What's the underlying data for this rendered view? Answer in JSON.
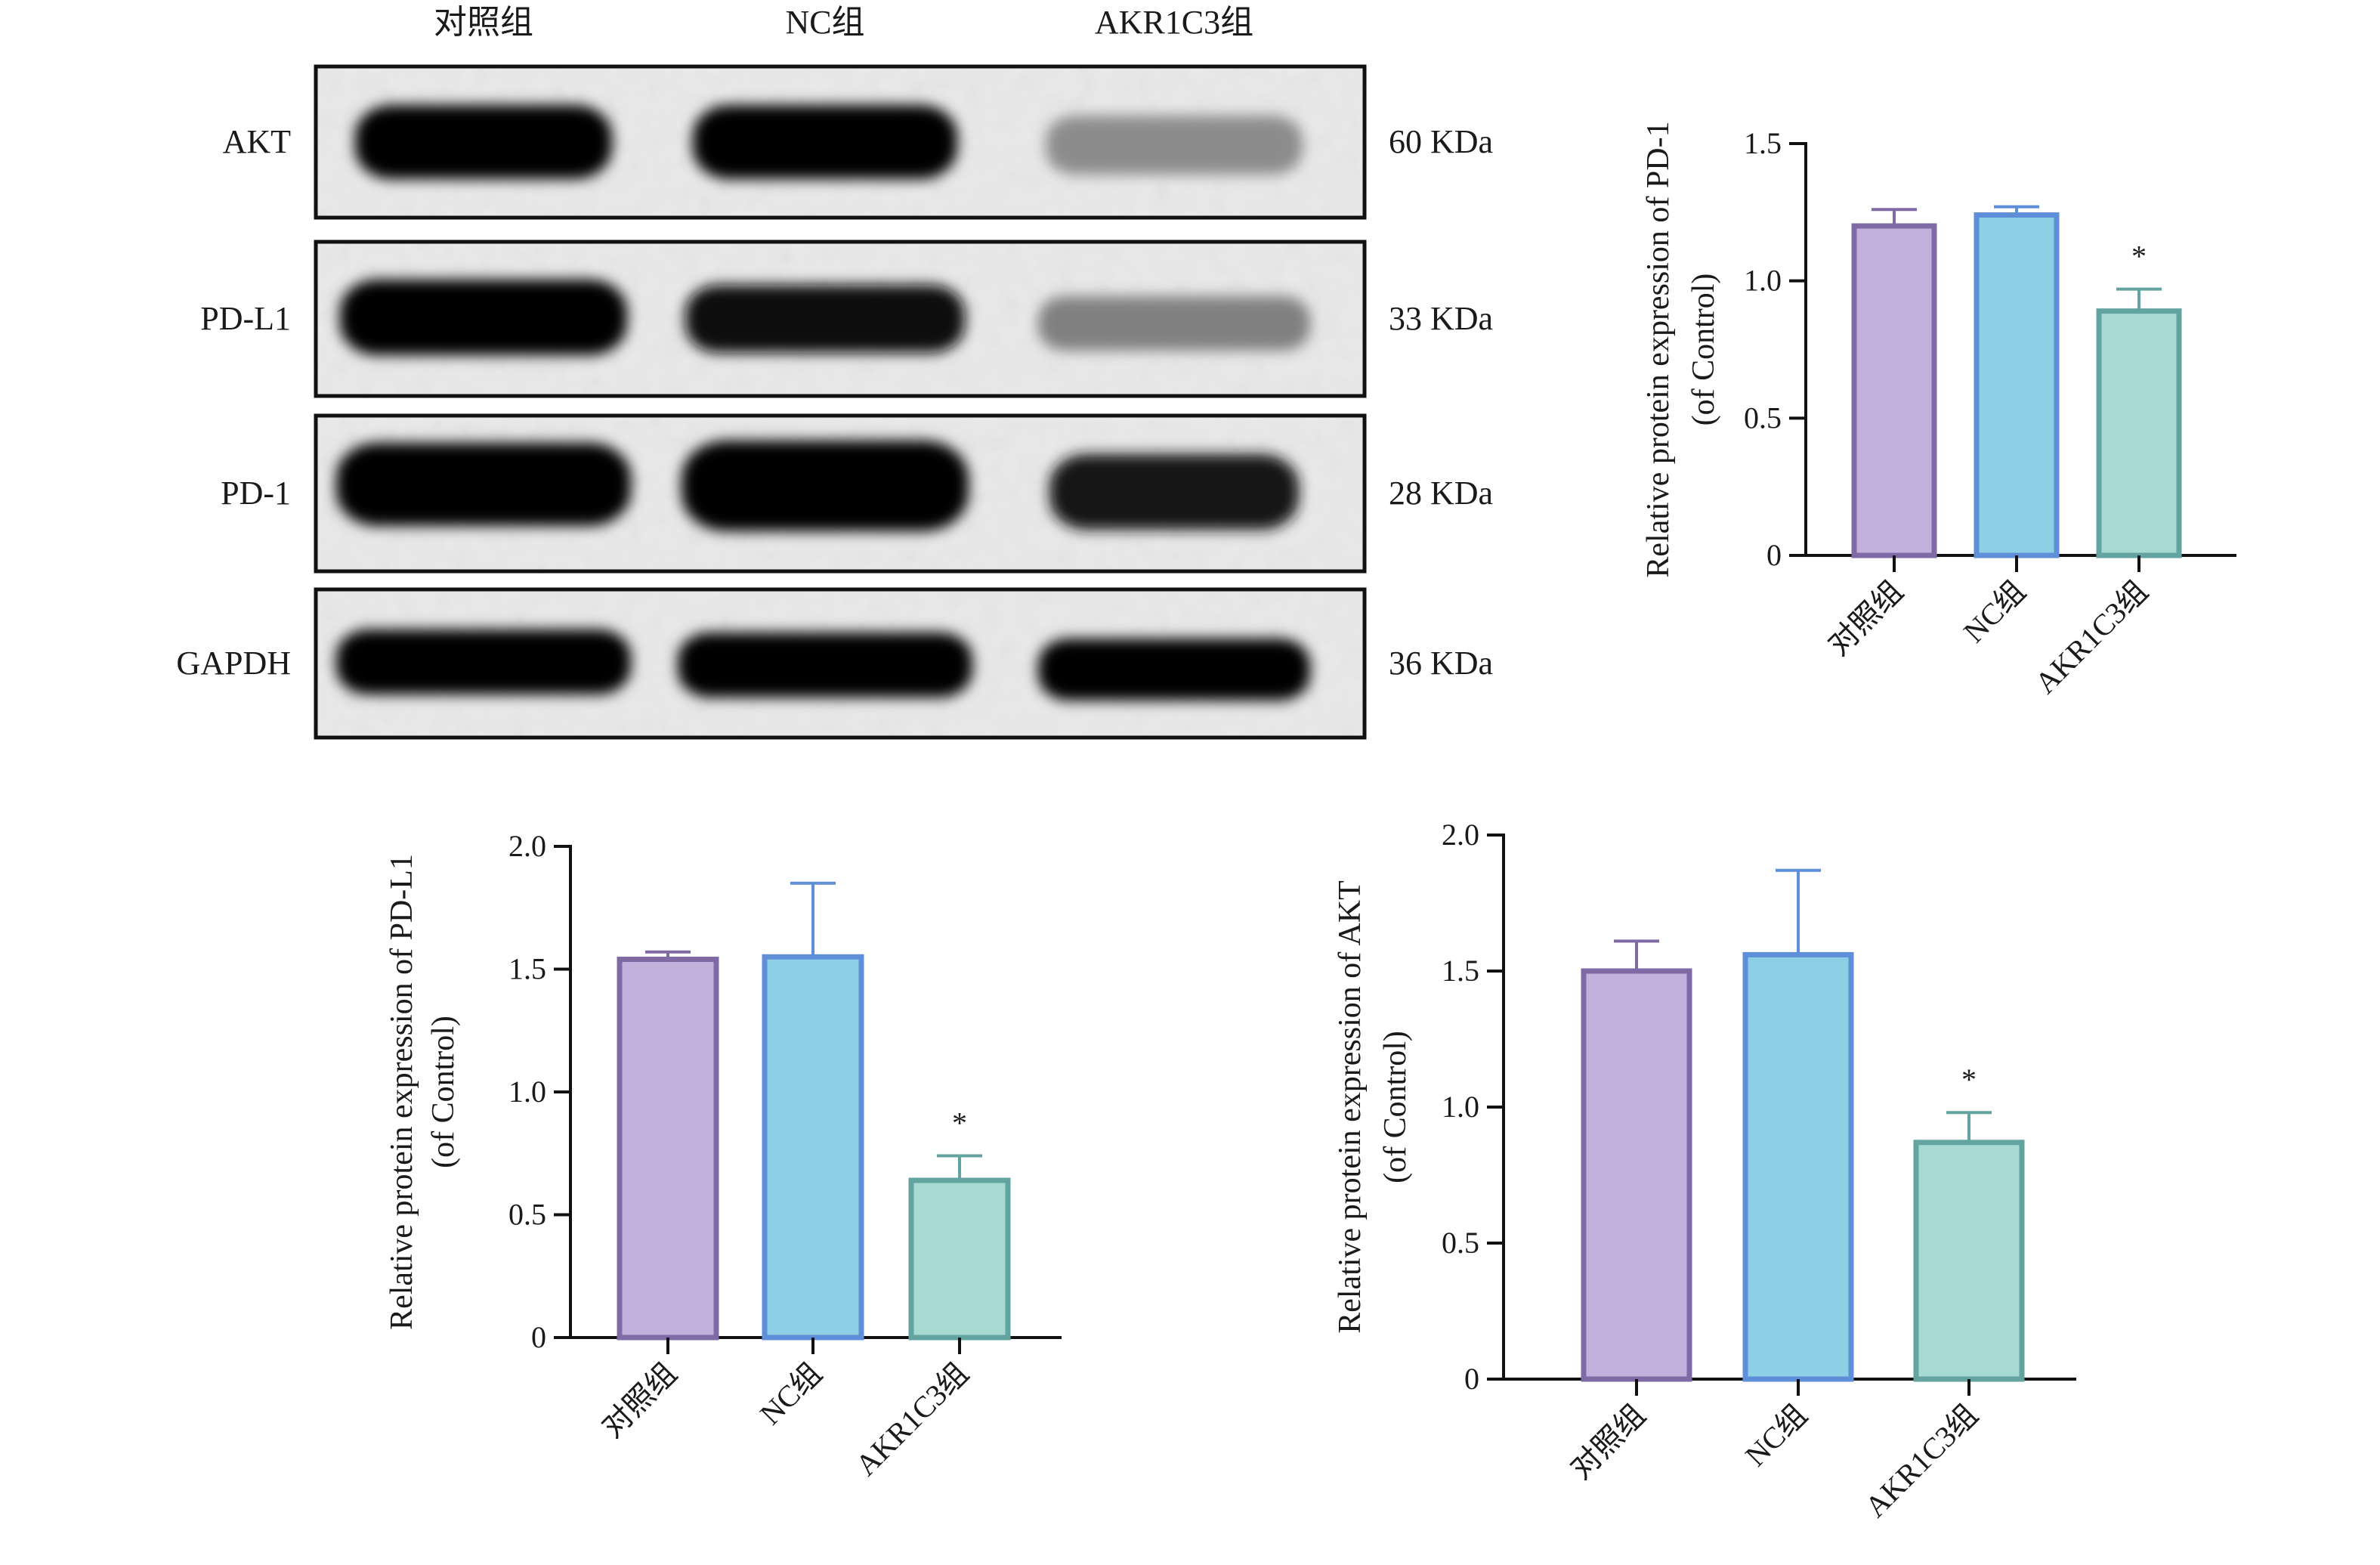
{
  "western_blot": {
    "lanes": [
      "对照组",
      "NC组",
      "AKR1C3组"
    ],
    "rows": [
      {
        "protein": "AKT",
        "weight": "60 KDa",
        "intensity": [
          1.0,
          1.0,
          0.45
        ]
      },
      {
        "protein": "PD-L1",
        "weight": "33 KDa",
        "intensity": [
          1.0,
          0.97,
          0.5
        ]
      },
      {
        "protein": "PD-1",
        "weight": "28 KDa",
        "intensity": [
          1.0,
          1.0,
          0.92
        ]
      },
      {
        "protein": "GAPDH",
        "weight": "36 KDa",
        "intensity": [
          1.0,
          1.0,
          1.0
        ]
      }
    ]
  },
  "chart_data": [
    {
      "type": "bar",
      "id": "pd1",
      "categories": [
        "对照组",
        "NC组",
        "AKR1C3组"
      ],
      "values": [
        1.2,
        1.24,
        0.89
      ],
      "errors": [
        0.06,
        0.03,
        0.08
      ],
      "significance": [
        "",
        "",
        "*"
      ],
      "ylabel_lines": [
        "Relative protein expression of  PD-1",
        "(of Control)"
      ],
      "ylim": [
        0,
        1.5
      ],
      "yticks": [
        0,
        0.5,
        1.0,
        1.5
      ],
      "ytick_labels": [
        "0",
        "0.5",
        "1.0",
        "1.5"
      ],
      "colors": {
        "fill": [
          "#c4b0dc",
          "#8dcfe5",
          "#a8dad4"
        ],
        "stroke": [
          "#7f6aa6",
          "#5f8fd8",
          "#63a3a0"
        ]
      }
    },
    {
      "type": "bar",
      "id": "pdl1",
      "categories": [
        "对照组",
        "NC组",
        "AKR1C3组"
      ],
      "values": [
        1.54,
        1.55,
        0.64
      ],
      "errors": [
        0.03,
        0.3,
        0.1
      ],
      "significance": [
        "",
        "",
        "*"
      ],
      "ylabel_lines": [
        "Relative protein expression of  PD-L1",
        "(of Control)"
      ],
      "ylim": [
        0,
        2.0
      ],
      "yticks": [
        0,
        0.5,
        1.0,
        1.5,
        2.0
      ],
      "ytick_labels": [
        "0",
        "0.5",
        "1.0",
        "1.5",
        "2.0"
      ],
      "colors": {
        "fill": [
          "#c4b0dc",
          "#8dcfe5",
          "#a8dad4"
        ],
        "stroke": [
          "#7f6aa6",
          "#5f8fd8",
          "#63a3a0"
        ]
      }
    },
    {
      "type": "bar",
      "id": "akt",
      "categories": [
        "对照组",
        "NC组",
        "AKR1C3组"
      ],
      "values": [
        1.5,
        1.56,
        0.87
      ],
      "errors": [
        0.11,
        0.31,
        0.11
      ],
      "significance": [
        "",
        "",
        "*"
      ],
      "ylabel_lines": [
        "Relative protein expression of AKT",
        "(of Control)"
      ],
      "ylim": [
        0,
        2.0
      ],
      "yticks": [
        0,
        0.5,
        1.0,
        1.5,
        2.0
      ],
      "ytick_labels": [
        "0",
        "0.5",
        "1.0",
        "1.5",
        "2.0"
      ],
      "colors": {
        "fill": [
          "#c4b0dc",
          "#8dcfe5",
          "#a8dad4"
        ],
        "stroke": [
          "#7f6aa6",
          "#5f8fd8",
          "#63a3a0"
        ]
      }
    }
  ]
}
